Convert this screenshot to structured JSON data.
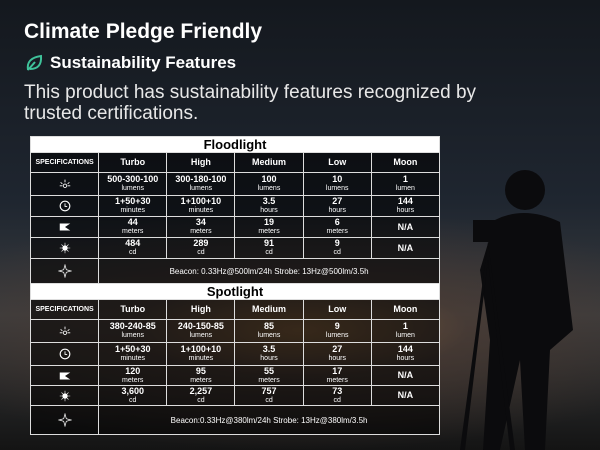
{
  "header": {
    "title": "Climate Pledge Friendly",
    "badge": "Sustainability Features",
    "description": "This product has sustainability features recognized by trusted certifications."
  },
  "tables": [
    {
      "title": "Floodlight",
      "columns": [
        "SPECIFICATIONS",
        "Turbo",
        "High",
        "Medium",
        "Low",
        "Moon"
      ],
      "rows": [
        [
          {
            "value": "500-300-100",
            "unit": "lumens"
          },
          {
            "value": "300-180-100",
            "unit": "lumens"
          },
          {
            "value": "100",
            "unit": "lumens"
          },
          {
            "value": "10",
            "unit": "lumens"
          },
          {
            "value": "1",
            "unit": "lumen"
          }
        ],
        [
          {
            "value": "1+50+30",
            "unit": "minutes"
          },
          {
            "value": "1+100+10",
            "unit": "minutes"
          },
          {
            "value": "3.5",
            "unit": "hours"
          },
          {
            "value": "27",
            "unit": "hours"
          },
          {
            "value": "144",
            "unit": "hours"
          }
        ],
        [
          {
            "value": "44",
            "unit": "meters"
          },
          {
            "value": "34",
            "unit": "meters"
          },
          {
            "value": "19",
            "unit": "meters"
          },
          {
            "value": "6",
            "unit": "meters"
          },
          {
            "value": "N/A"
          }
        ],
        [
          {
            "value": "484",
            "unit": "cd"
          },
          {
            "value": "289",
            "unit": "cd"
          },
          {
            "value": "91",
            "unit": "cd"
          },
          {
            "value": "9",
            "unit": "cd"
          },
          {
            "value": "N/A"
          }
        ]
      ],
      "note": "Beacon: 0.33Hz@500lm/24h  Strobe: 13Hz@500lm/3.5h"
    },
    {
      "title": "Spotlight",
      "columns": [
        "SPECIFICATIONS",
        "Turbo",
        "High",
        "Medium",
        "Low",
        "Moon"
      ],
      "rows": [
        [
          {
            "value": "380-240-85",
            "unit": "lumens"
          },
          {
            "value": "240-150-85",
            "unit": "lumens"
          },
          {
            "value": "85",
            "unit": "lumens"
          },
          {
            "value": "9",
            "unit": "lumens"
          },
          {
            "value": "1",
            "unit": "lumen"
          }
        ],
        [
          {
            "value": "1+50+30",
            "unit": "minutes"
          },
          {
            "value": "1+100+10",
            "unit": "minutes"
          },
          {
            "value": "3.5",
            "unit": "hours"
          },
          {
            "value": "27",
            "unit": "hours"
          },
          {
            "value": "144",
            "unit": "hours"
          }
        ],
        [
          {
            "value": "120",
            "unit": "meters"
          },
          {
            "value": "95",
            "unit": "meters"
          },
          {
            "value": "55",
            "unit": "meters"
          },
          {
            "value": "17",
            "unit": "meters"
          },
          {
            "value": "N/A"
          }
        ],
        [
          {
            "value": "3,600",
            "unit": "cd"
          },
          {
            "value": "2,257",
            "unit": "cd"
          },
          {
            "value": "757",
            "unit": "cd"
          },
          {
            "value": "73",
            "unit": "cd"
          },
          {
            "value": "N/A"
          }
        ]
      ],
      "note": "Beacon:0.33Hz@380lm/24h Strobe: 13Hz@380lm/3.5h"
    }
  ]
}
